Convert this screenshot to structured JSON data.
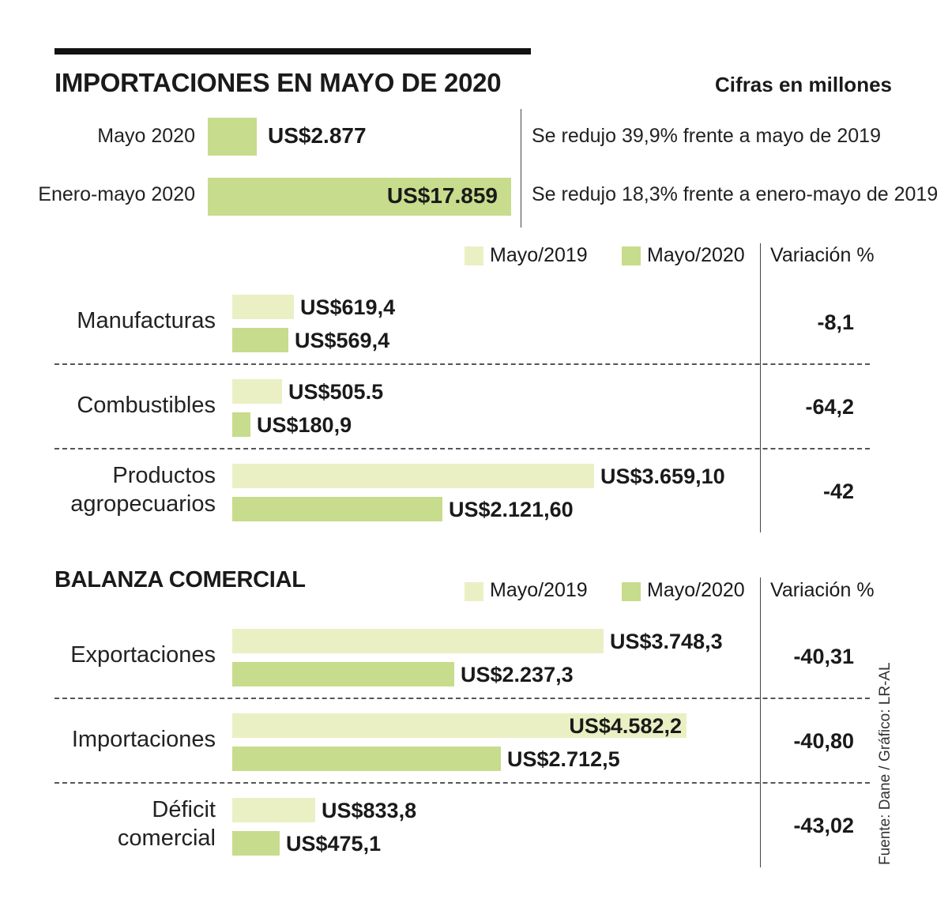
{
  "title": "IMPORTACIONES EN MAYO DE 2020",
  "units": "Cifras en millones",
  "colors": {
    "light": "#eaf0c4",
    "dark": "#c7dc8c",
    "text": "#1a1a1a"
  },
  "summary": [
    {
      "label": "Mayo 2020",
      "value_label": "US$2.877",
      "value": 2877,
      "note": "Se redujo 39,9% frente a mayo de 2019"
    },
    {
      "label": "Enero-mayo 2020",
      "value_label": "US$17.859",
      "value": 17859,
      "note": "Se redujo 18,3% frente a enero-mayo de 2019"
    }
  ],
  "legend": {
    "a": "Mayo/2019",
    "b": "Mayo/2020",
    "var_header": "Variación %"
  },
  "section2_title": "BALANZA COMERCIAL",
  "source": "Fuente: Dane / Gráfico: LR-AL",
  "chart_data": [
    {
      "type": "bar",
      "title": "IMPORTACIONES EN MAYO DE 2020",
      "categories": [
        "Manufacturas",
        "Combustibles",
        "Productos agropecuarios"
      ],
      "series": [
        {
          "name": "Mayo/2019",
          "values": [
            619.4,
            505.5,
            3659.1
          ],
          "labels": [
            "US$619,4",
            "US$505.5",
            "US$3.659,10"
          ]
        },
        {
          "name": "Mayo/2020",
          "values": [
            569.4,
            180.9,
            2121.6
          ],
          "labels": [
            "US$569,4",
            "US$180,9",
            "US$2.121,60"
          ]
        }
      ],
      "variation_labels": [
        "-8,1",
        "-64,2",
        "-42"
      ]
    },
    {
      "type": "bar",
      "title": "BALANZA COMERCIAL",
      "categories": [
        "Exportaciones",
        "Importaciones",
        "Déficit comercial"
      ],
      "series": [
        {
          "name": "Mayo/2019",
          "values": [
            3748.3,
            4582.2,
            833.8
          ],
          "labels": [
            "US$3.748,3",
            "US$4.582,2",
            "US$833,8"
          ]
        },
        {
          "name": "Mayo/2020",
          "values": [
            2237.3,
            2712.5,
            475.1
          ],
          "labels": [
            "US$2.237,3",
            "US$2.712,5",
            "US$475,1"
          ]
        }
      ],
      "variation_labels": [
        "-40,31",
        "-40,80",
        "-43,02"
      ]
    }
  ]
}
